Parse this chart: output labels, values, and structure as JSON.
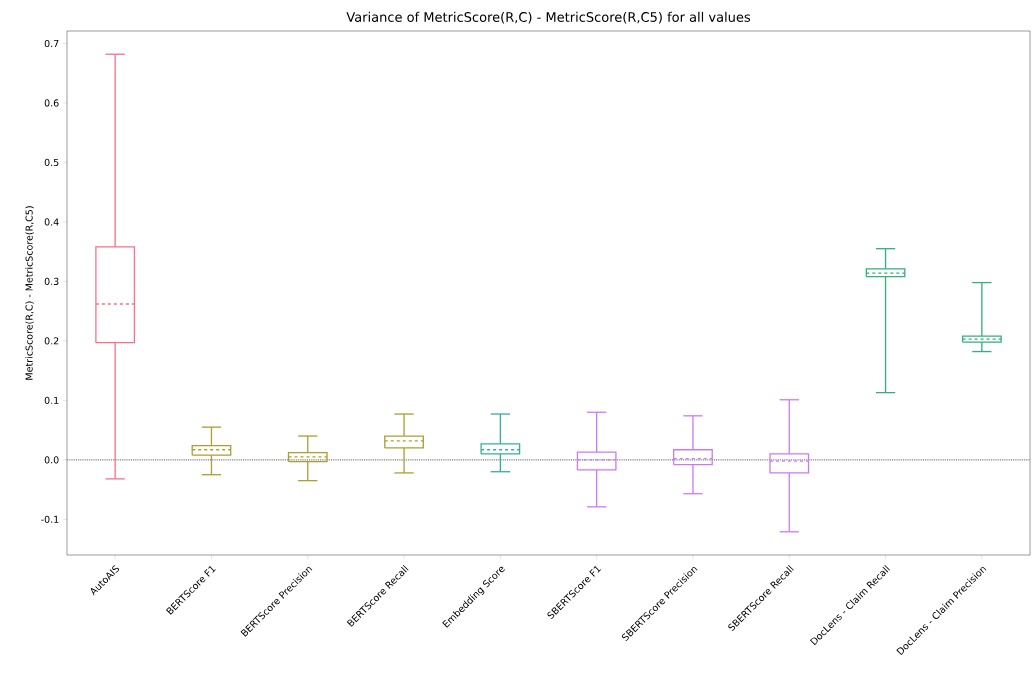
{
  "chart_data": {
    "type": "box",
    "title": "Variance of MetricScore(R,C) - MetricScore(R,C5) for all values",
    "ylabel": "MetricScore(R,C) - MetricScore(R,C5)",
    "categories": [
      "AutoAIS",
      "BERTScore F1",
      "BERTScore Precision",
      "BERTScore Recall",
      "Embedding Score",
      "SBERTScore F1",
      "SBERTScore Precision",
      "SBERTScore Recall",
      "DocLens - Claim Recall",
      "DocLens - Claim Precision"
    ],
    "colors": [
      "#f77189",
      "#ae9d31",
      "#ae9d31",
      "#ae9d31",
      "#36ada4",
      "#cc7af4",
      "#cc7af4",
      "#cc7af4",
      "#33b07a",
      "#33b07a"
    ],
    "boxes": [
      {
        "low": -0.032,
        "q1": 0.197,
        "median": 0.262,
        "q3": 0.358,
        "high": 0.682
      },
      {
        "low": -0.025,
        "q1": 0.008,
        "median": 0.017,
        "q3": 0.024,
        "high": 0.055
      },
      {
        "low": -0.035,
        "q1": -0.003,
        "median": 0.005,
        "q3": 0.012,
        "high": 0.04
      },
      {
        "low": -0.022,
        "q1": 0.02,
        "median": 0.032,
        "q3": 0.04,
        "high": 0.077
      },
      {
        "low": -0.02,
        "q1": 0.01,
        "median": 0.017,
        "q3": 0.027,
        "high": 0.077
      },
      {
        "low": -0.079,
        "q1": -0.017,
        "median": 0.0,
        "q3": 0.013,
        "high": 0.08
      },
      {
        "low": -0.057,
        "q1": -0.008,
        "median": 0.002,
        "q3": 0.017,
        "high": 0.074
      },
      {
        "low": -0.121,
        "q1": -0.022,
        "median": -0.002,
        "q3": 0.01,
        "high": 0.101
      },
      {
        "low": 0.113,
        "q1": 0.308,
        "median": 0.314,
        "q3": 0.321,
        "high": 0.355
      },
      {
        "low": 0.182,
        "q1": 0.198,
        "median": 0.203,
        "q3": 0.208,
        "high": 0.298
      }
    ],
    "ylim": [
      -0.16,
      0.721
    ],
    "yticks": [
      -0.1,
      {
        "value": 0,
        "label": "0.0"
      },
      0.1,
      0.2,
      0.3,
      0.4,
      0.5,
      0.6,
      0.7
    ],
    "ref_lines": [
      {
        "axis": "y",
        "value": 0,
        "color": "#808080",
        "line_style": "dotted"
      }
    ]
  }
}
